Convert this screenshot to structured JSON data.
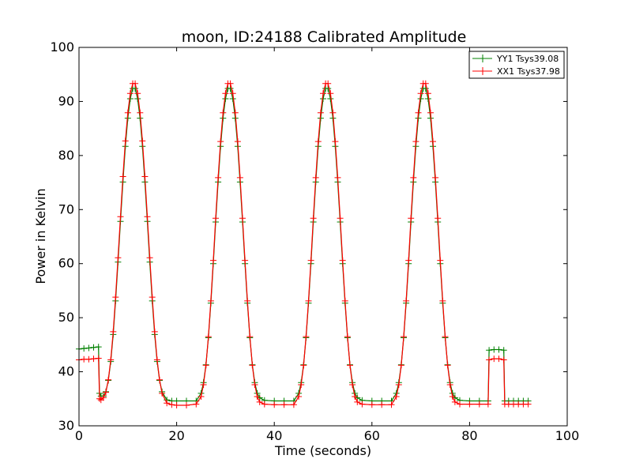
{
  "chart_data": {
    "type": "line",
    "title": "moon, ID:24188 Calibrated Amplitude",
    "xlabel": "Time (seconds)",
    "ylabel": "Power in Kelvin",
    "xlim": [
      0,
      100
    ],
    "ylim": [
      30,
      100
    ],
    "x_ticks": [
      "0",
      "20",
      "40",
      "60",
      "80",
      "100"
    ],
    "y_ticks": [
      "30",
      "40",
      "50",
      "60",
      "70",
      "80",
      "90",
      "100"
    ],
    "grid": false,
    "legend_position": "top-right",
    "marker": "+",
    "series": [
      {
        "name": "YY1 Tsys39.08",
        "color": "#008000",
        "x": [
          0,
          1,
          2,
          3,
          4,
          4.2,
          4.5,
          5,
          5.5,
          6,
          6.5,
          7,
          7.5,
          8,
          8.5,
          9,
          9.5,
          10,
          10.5,
          11,
          11.5,
          12,
          12.5,
          13,
          13.5,
          14,
          14.5,
          15,
          15.5,
          16,
          16.5,
          17,
          18,
          19,
          20,
          22,
          24,
          25,
          25.5,
          26,
          26.5,
          27,
          27.5,
          28,
          28.5,
          29,
          29.5,
          30,
          30.5,
          31,
          31.5,
          32,
          32.5,
          33,
          33.5,
          34,
          34.5,
          35,
          35.5,
          36,
          36.5,
          37,
          38,
          40,
          42,
          44,
          45,
          45.5,
          46,
          46.5,
          47,
          47.5,
          48,
          48.5,
          49,
          49.5,
          50,
          50.5,
          51,
          51.5,
          52,
          52.5,
          53,
          53.5,
          54,
          54.5,
          55,
          55.5,
          56,
          56.5,
          57,
          58,
          60,
          62,
          64,
          65,
          65.5,
          66,
          66.5,
          67,
          67.5,
          68,
          68.5,
          69,
          69.5,
          70,
          70.5,
          71,
          71.5,
          72,
          72.5,
          73,
          73.5,
          74,
          74.5,
          75,
          75.5,
          76,
          76.5,
          77,
          78,
          80,
          82,
          83.8,
          84,
          85,
          86,
          87,
          87.2,
          88,
          89,
          90,
          91,
          92
        ],
        "values": [
          44.2,
          44.3,
          44.4,
          44.5,
          44.6,
          36.0,
          35.5,
          35.5,
          36.3,
          38.4,
          41.9,
          46.9,
          53.1,
          60.3,
          67.8,
          75.1,
          81.7,
          86.9,
          90.5,
          92.4,
          92.4,
          90.5,
          86.9,
          81.7,
          75.1,
          67.8,
          60.3,
          53.1,
          46.9,
          41.9,
          38.4,
          36.3,
          34.8,
          34.6,
          34.6,
          34.6,
          34.6,
          36.0,
          38.0,
          41.3,
          46.3,
          52.7,
          60.0,
          67.7,
          75.1,
          81.7,
          86.9,
          90.5,
          92.4,
          92.4,
          90.5,
          86.9,
          81.7,
          75.1,
          67.7,
          60.0,
          52.7,
          46.3,
          41.3,
          38.0,
          36.0,
          35.2,
          34.7,
          34.6,
          34.6,
          34.6,
          36.0,
          38.0,
          41.3,
          46.3,
          52.7,
          60.0,
          67.7,
          75.1,
          81.7,
          86.9,
          90.5,
          92.4,
          92.4,
          90.5,
          86.9,
          81.7,
          75.1,
          67.7,
          60.0,
          52.7,
          46.3,
          41.3,
          38.0,
          36.0,
          35.2,
          34.7,
          34.6,
          34.6,
          34.6,
          36.0,
          38.0,
          41.3,
          46.3,
          52.7,
          60.0,
          67.7,
          75.1,
          81.7,
          86.9,
          90.5,
          92.4,
          92.4,
          90.5,
          86.9,
          81.7,
          75.1,
          67.7,
          60.0,
          52.7,
          46.3,
          41.3,
          38.0,
          36.0,
          35.2,
          34.7,
          34.6,
          34.6,
          34.6,
          44.0,
          44.1,
          44.1,
          44.0,
          34.6,
          34.6,
          34.6,
          34.6,
          34.6,
          34.6
        ]
      },
      {
        "name": "XX1 Tsys37.98",
        "color": "#ff0000",
        "x": [
          0,
          1,
          2,
          3,
          4,
          4.2,
          4.5,
          5,
          5.5,
          6,
          6.5,
          7,
          7.5,
          8,
          8.5,
          9,
          9.5,
          10,
          10.5,
          11,
          11.5,
          12,
          12.5,
          13,
          13.5,
          14,
          14.5,
          15,
          15.5,
          16,
          16.5,
          17,
          18,
          19,
          20,
          22,
          24,
          25,
          25.5,
          26,
          26.5,
          27,
          27.5,
          28,
          28.5,
          29,
          29.5,
          30,
          30.5,
          31,
          31.5,
          32,
          32.5,
          33,
          33.5,
          34,
          34.5,
          35,
          35.5,
          36,
          36.5,
          37,
          38,
          40,
          42,
          44,
          45,
          45.5,
          46,
          46.5,
          47,
          47.5,
          48,
          48.5,
          49,
          49.5,
          50,
          50.5,
          51,
          51.5,
          52,
          52.5,
          53,
          53.5,
          54,
          54.5,
          55,
          55.5,
          56,
          56.5,
          57,
          58,
          60,
          62,
          64,
          65,
          65.5,
          66,
          66.5,
          67,
          67.5,
          68,
          68.5,
          69,
          69.5,
          70,
          70.5,
          71,
          71.5,
          72,
          72.5,
          73,
          73.5,
          74,
          74.5,
          75,
          75.5,
          76,
          76.5,
          77,
          78,
          80,
          82,
          83.8,
          84,
          85,
          86,
          87,
          87.2,
          88,
          89,
          90,
          91,
          92
        ],
        "values": [
          42.2,
          42.3,
          42.3,
          42.4,
          42.5,
          35.0,
          34.8,
          35.2,
          36.2,
          38.5,
          42.2,
          47.4,
          53.8,
          61.1,
          68.7,
          76.1,
          82.7,
          87.9,
          91.5,
          93.3,
          93.3,
          91.5,
          87.9,
          82.7,
          76.1,
          68.7,
          61.1,
          53.8,
          47.4,
          42.2,
          38.5,
          36.0,
          34.2,
          33.9,
          33.8,
          33.8,
          34.0,
          35.4,
          37.6,
          41.2,
          46.5,
          53.1,
          60.6,
          68.4,
          75.9,
          82.6,
          87.9,
          91.5,
          93.3,
          93.3,
          91.5,
          87.9,
          82.6,
          75.9,
          68.4,
          60.6,
          53.1,
          46.5,
          41.2,
          37.6,
          35.4,
          34.4,
          34.0,
          33.9,
          33.9,
          33.9,
          35.4,
          37.6,
          41.2,
          46.5,
          53.1,
          60.6,
          68.4,
          75.9,
          82.6,
          87.9,
          91.5,
          93.3,
          93.3,
          91.5,
          87.9,
          82.6,
          75.9,
          68.4,
          60.6,
          53.1,
          46.5,
          41.2,
          37.6,
          35.4,
          34.4,
          34.0,
          33.9,
          33.9,
          33.9,
          35.4,
          37.6,
          41.2,
          46.5,
          53.1,
          60.6,
          68.4,
          75.9,
          82.6,
          87.9,
          91.5,
          93.3,
          93.3,
          91.5,
          87.9,
          82.6,
          75.9,
          68.4,
          60.6,
          53.1,
          46.5,
          41.2,
          37.6,
          35.4,
          34.4,
          34.0,
          34.0,
          34.0,
          34.0,
          42.2,
          42.4,
          42.4,
          42.2,
          34.0,
          34.0,
          34.0,
          34.0,
          34.0,
          34.0
        ]
      }
    ]
  }
}
